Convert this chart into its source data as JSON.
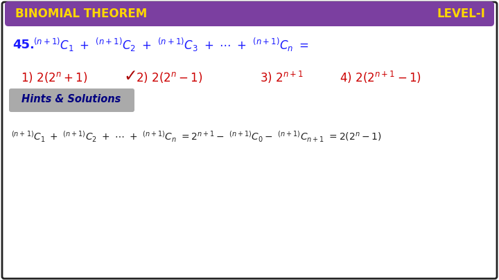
{
  "title_left": "BINOMIAL THEOREM",
  "title_right": "LEVEL-I",
  "header_bg": "#7B3FA0",
  "header_text_color": "#FFD700",
  "body_bg": "#FFFFFF",
  "border_color": "#222222",
  "question_number": "45.",
  "question_color": "#1a1aff",
  "options_color": "#CC0000",
  "checkmark_color": "#AA0000",
  "hints_bg": "#AAAAAA",
  "hints_text": "Hints & Solutions",
  "hints_text_color": "#000080",
  "solution_color": "#222222"
}
